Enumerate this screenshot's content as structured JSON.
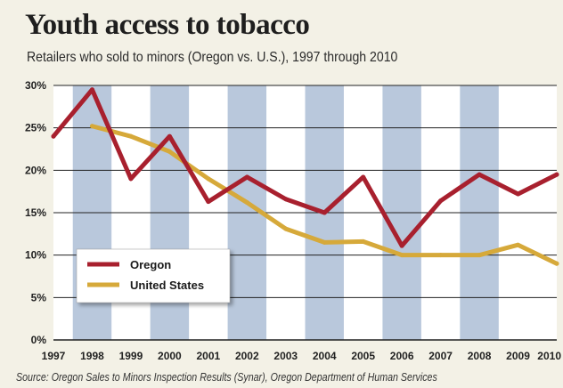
{
  "chart_data": {
    "type": "line",
    "title": "Youth access to tobacco",
    "subtitle": "Retailers who sold to minors (Oregon vs. U.S.), 1997 through 2010",
    "source": "Source: Oregon Sales to Minors Inspection Results (Synar), Oregon Department of Human Services",
    "x": [
      1997,
      1998,
      1999,
      2000,
      2001,
      2002,
      2003,
      2004,
      2005,
      2006,
      2007,
      2008,
      2009,
      2010
    ],
    "x_tick_labels": [
      "1997",
      "1998",
      "1999",
      "2000",
      "2001",
      "2002",
      "2003",
      "2004",
      "2005",
      "2006",
      "2007",
      "2008",
      "2009",
      "2010"
    ],
    "ylim": [
      0,
      30
    ],
    "y_ticks": [
      0,
      5,
      10,
      15,
      20,
      25,
      30
    ],
    "y_tick_labels": [
      "0%",
      "5%",
      "10%",
      "15%",
      "20%",
      "25%",
      "30%"
    ],
    "grid": true,
    "legend_position": "bottom-left",
    "series": [
      {
        "name": "Oregon",
        "color": "#a8202e",
        "values": [
          24,
          29.5,
          19,
          24,
          16.3,
          19.2,
          16.6,
          15,
          19.2,
          11.1,
          16.4,
          19.5,
          17.2,
          19.5
        ]
      },
      {
        "name": "United States",
        "color": "#d6a93a",
        "values": [
          null,
          25.2,
          24,
          22.2,
          19,
          16.2,
          13.1,
          11.5,
          11.6,
          10,
          10,
          10,
          11.2,
          9
        ]
      }
    ],
    "colors": {
      "stripe": "#b9c8dc",
      "plot_bg": "#ffffff",
      "gridline": "#222222"
    }
  }
}
